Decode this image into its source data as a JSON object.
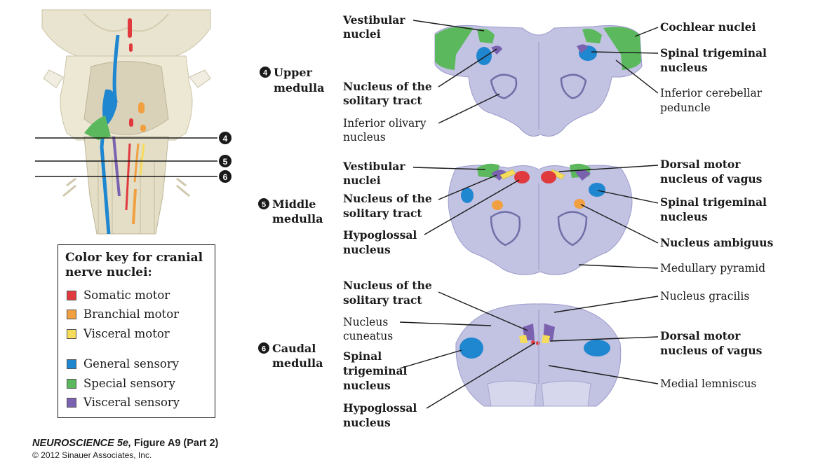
{
  "sections": {
    "upper": {
      "number": "4",
      "line1": "Upper",
      "line2": "medulla"
    },
    "middle": {
      "number": "5",
      "line1": "Middle",
      "line2": "medulla"
    },
    "caudal": {
      "number": "6",
      "line1": "Caudal",
      "line2": "medulla"
    }
  },
  "brainstem_markers": [
    "4",
    "5",
    "6"
  ],
  "labels": {
    "upper": {
      "vestibular": [
        "Vestibular",
        "nuclei"
      ],
      "solitary": [
        "Nucleus of the",
        "solitary tract"
      ],
      "olivary": [
        "Inferior olivary",
        "nucleus"
      ],
      "cochlear": [
        "Cochlear nuclei"
      ],
      "trigeminal": [
        "Spinal trigeminal",
        "nucleus"
      ],
      "peduncle": [
        "Inferior cerebellar",
        "peduncle"
      ]
    },
    "middle": {
      "vestibular": [
        "Vestibular",
        "nuclei"
      ],
      "solitary": [
        "Nucleus of the",
        "solitary tract"
      ],
      "hypoglossal": [
        "Hypoglossal",
        "nucleus"
      ],
      "dorsal_motor": [
        "Dorsal motor",
        "nucleus of vagus"
      ],
      "trigeminal": [
        "Spinal trigeminal",
        "nucleus"
      ],
      "ambiguus": [
        "Nucleus ambiguus"
      ],
      "pyramid": [
        "Medullary pyramid"
      ]
    },
    "caudal": {
      "solitary": [
        "Nucleus of the",
        "solitary tract"
      ],
      "cuneatus": [
        "Nucleus",
        "cuneatus"
      ],
      "trigeminal": [
        "Spinal",
        "trigeminal",
        "nucleus"
      ],
      "hypoglossal": [
        "Hypoglossal",
        "nucleus"
      ],
      "gracilis": [
        "Nucleus gracilis"
      ],
      "dorsal_motor": [
        "Dorsal motor",
        "nucleus of vagus"
      ],
      "lemniscus": [
        "Medial lemniscus"
      ]
    }
  },
  "color_key": {
    "title_line1": "Color key for cranial",
    "title_line2": "nerve nuclei:",
    "items": [
      {
        "label": "Somatic motor",
        "color": "#e03a3e"
      },
      {
        "label": "Branchial motor",
        "color": "#f0a040"
      },
      {
        "label": "Visceral motor",
        "color": "#f5dc5a"
      },
      {
        "label": "General sensory",
        "color": "#1f86d0"
      },
      {
        "label": "Special sensory",
        "color": "#5bb85d"
      },
      {
        "label": "Visceral sensory",
        "color": "#7a62b0"
      }
    ]
  },
  "credit": {
    "book": "NEUROSCIENCE 5e,",
    "figure": "Figure A9 (Part 2)",
    "copyright": "© 2012 Sinauer Associates, Inc."
  },
  "colors": {
    "tissue": "#c2c2e2",
    "tissue_dark": "#8c8cc0",
    "somatic_motor": "#e03a3e",
    "branchial_motor": "#f0a040",
    "visceral_motor": "#f5dc5a",
    "general_sensory": "#1f86d0",
    "special_sensory": "#5bb85d",
    "visceral_sensory": "#7a62b0"
  }
}
